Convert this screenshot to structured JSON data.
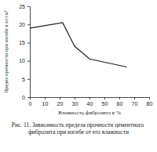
{
  "chart_data": {
    "type": "line",
    "title": "Рис. 11. Зависимость предела прочности цементного фибролита при изгибе от его влажности",
    "x_label": "Влажность фибролита в %",
    "y_label": "Предел прочности при изгибе в кг/см²",
    "x": [
      0,
      22,
      30,
      40,
      65
    ],
    "values": [
      19,
      20.5,
      14,
      10.5,
      8.3
    ],
    "color": "#1a1a1a",
    "xlim": [
      0,
      80
    ],
    "xticks": [
      0,
      10,
      20,
      30,
      40,
      50,
      60,
      70,
      80
    ],
    "ylim": [
      0,
      25
    ],
    "yticks": [
      0,
      5,
      10,
      15,
      20,
      25
    ],
    "grid": false
  }
}
